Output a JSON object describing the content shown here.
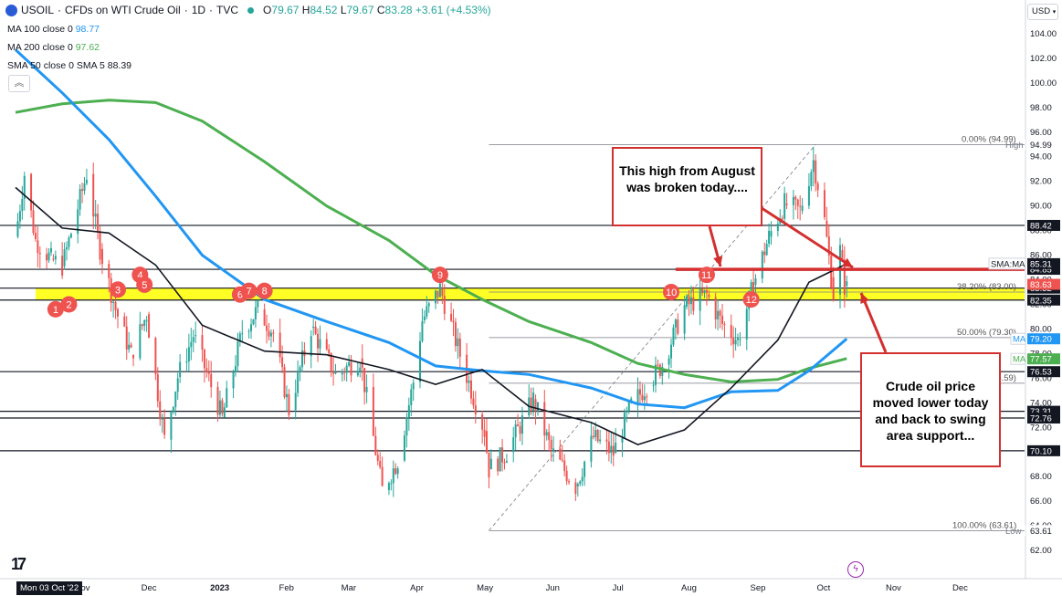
{
  "header": {
    "symbol": "USOIL",
    "title": "CFDs on WTI Crude Oil",
    "interval": "1D",
    "source": "TVC",
    "ohlc": [
      {
        "key": "O",
        "value": "79.67"
      },
      {
        "key": "H",
        "value": "84.52"
      },
      {
        "key": "L",
        "value": "79.67"
      },
      {
        "key": "C",
        "value": "83.28"
      },
      {
        "key": "",
        "value": "+3.61 (+4.53%)"
      }
    ],
    "indicators": [
      {
        "label": "MA 100 close 0",
        "value": "98.77",
        "color": "#2196f3"
      },
      {
        "label": "MA 200 close 0",
        "value": "97.62",
        "color": "#4caf50"
      },
      {
        "label": "SMA 50 close 0 SMA 5",
        "value": "88.39",
        "color": "#131722"
      }
    ],
    "collapse_symbol": "︽",
    "currency": "USD"
  },
  "colors": {
    "up": "#26a69a",
    "down": "#ef5350",
    "ma100": "#2196f3",
    "ma200": "#4caf50",
    "sma50": "#131722",
    "swing_zone": "#ffff00",
    "annotation": "#d32f2f",
    "fib": "#787b86"
  },
  "callouts": {
    "top": "This high from August was broken today....",
    "bottom": "Crude oil price moved lower today and back to swing area support..."
  },
  "bottom_bar": {
    "logo": "17",
    "date_tag": "Mon 03 Oct '22"
  },
  "chart_data": {
    "type": "candlestick",
    "y_axis_ticks": [
      62.0,
      64.0,
      66.0,
      68.0,
      70.0,
      72.0,
      74.0,
      76.0,
      78.0,
      80.0,
      82.0,
      84.0,
      86.0,
      88.0,
      90.0,
      92.0,
      94.0,
      96.0,
      98.0,
      100.0,
      102.0,
      104.0
    ],
    "ylim": [
      60,
      106
    ],
    "x_axis_ticks": [
      "Nov",
      "Dec",
      "2023",
      "Feb",
      "Mar",
      "Apr",
      "May",
      "Jun",
      "Jul",
      "Aug",
      "Sep",
      "Oct",
      "Nov",
      "Dec"
    ],
    "x_axis_tick_bold": "2023",
    "x_start": "2022-10-03",
    "x_end": "2023-12-31",
    "price_lines": [
      {
        "label": "94.99",
        "value": 94.99,
        "tag": "High",
        "style": "fib"
      },
      {
        "label": "88.42",
        "value": 88.42,
        "style": "solid"
      },
      {
        "label": "84.85",
        "value": 84.85,
        "style": "solid"
      },
      {
        "label": "83.32",
        "value": 83.32,
        "style": "solid"
      },
      {
        "label": "82.35",
        "value": 82.35,
        "style": "solid"
      },
      {
        "label": "76.53",
        "value": 76.53,
        "style": "solid"
      },
      {
        "label": "73.31",
        "value": 73.31,
        "style": "solid"
      },
      {
        "label": "72.76",
        "value": 72.76,
        "style": "solid"
      },
      {
        "label": "70.10",
        "value": 70.1,
        "style": "solid"
      },
      {
        "label": "63.61",
        "value": 63.61,
        "tag": "Low",
        "style": "fib"
      }
    ],
    "value_badges": [
      {
        "label": "SMA:MA",
        "value": "85.31",
        "y": 85.31,
        "color": "#131722"
      },
      {
        "label": "",
        "value": "83.63",
        "y": 83.63,
        "color": "#ef5350"
      },
      {
        "label": "MA",
        "value": "79.20",
        "y": 79.2,
        "color": "#2196f3"
      },
      {
        "label": "MA",
        "value": "77.57",
        "y": 77.57,
        "color": "#4caf50"
      }
    ],
    "fib_levels": [
      {
        "label": "0.00% (94.99)",
        "value": 94.99
      },
      {
        "label": "38.20% (83.00)",
        "value": 83.0
      },
      {
        "label": "50.00% (79.30)",
        "value": 79.3
      },
      {
        "label": "61.80% (75.59)",
        "value": 75.59
      },
      {
        "label": "100.00% (63.61)",
        "value": 63.61
      }
    ],
    "fib_range": {
      "start_date": "2023-05-04",
      "end_date": "2023-09-28"
    },
    "swing_zone": {
      "low": 82.35,
      "high": 83.32,
      "start_date": "2022-10-12",
      "end_date": "2023-12-31"
    },
    "red_resistance_line": {
      "value": 84.85,
      "start_date": "2023-07-27",
      "end_date": "2023-12-31"
    },
    "swing_markers": [
      {
        "label": "1",
        "date": "2022-10-21",
        "price": 81.6
      },
      {
        "label": "2",
        "date": "2022-10-27",
        "price": 82.0
      },
      {
        "label": "3",
        "date": "2022-11-18",
        "price": 83.2
      },
      {
        "label": "4",
        "date": "2022-11-28",
        "price": 84.4
      },
      {
        "label": "5",
        "date": "2022-11-30",
        "price": 83.6
      },
      {
        "label": "6",
        "date": "2023-01-12",
        "price": 82.8
      },
      {
        "label": "7",
        "date": "2023-01-16",
        "price": 83.1
      },
      {
        "label": "8",
        "date": "2023-01-23",
        "price": 83.1
      },
      {
        "label": "9",
        "date": "2023-04-12",
        "price": 84.4
      },
      {
        "label": "10",
        "date": "2023-07-25",
        "price": 83.0
      },
      {
        "label": "11",
        "date": "2023-08-10",
        "price": 84.4
      },
      {
        "label": "12",
        "date": "2023-08-30",
        "price": 82.4
      }
    ],
    "ma100_path": [
      {
        "date": "2022-10-03",
        "value": 102.7
      },
      {
        "date": "2022-10-24",
        "value": 99.2
      },
      {
        "date": "2022-11-14",
        "value": 95.4
      },
      {
        "date": "2022-12-05",
        "value": 90.8
      },
      {
        "date": "2022-12-26",
        "value": 86.0
      },
      {
        "date": "2023-01-23",
        "value": 82.4
      },
      {
        "date": "2023-02-20",
        "value": 80.6
      },
      {
        "date": "2023-03-20",
        "value": 78.9
      },
      {
        "date": "2023-04-10",
        "value": 77.0
      },
      {
        "date": "2023-05-01",
        "value": 76.6
      },
      {
        "date": "2023-05-22",
        "value": 76.3
      },
      {
        "date": "2023-06-19",
        "value": 75.2
      },
      {
        "date": "2023-07-10",
        "value": 73.9
      },
      {
        "date": "2023-07-31",
        "value": 73.6
      },
      {
        "date": "2023-08-21",
        "value": 74.9
      },
      {
        "date": "2023-09-11",
        "value": 75.0
      },
      {
        "date": "2023-09-25",
        "value": 76.6
      },
      {
        "date": "2023-10-12",
        "value": 79.2
      }
    ],
    "ma200_path": [
      {
        "date": "2022-10-03",
        "value": 97.6
      },
      {
        "date": "2022-10-24",
        "value": 98.3
      },
      {
        "date": "2022-11-14",
        "value": 98.6
      },
      {
        "date": "2022-12-05",
        "value": 98.4
      },
      {
        "date": "2022-12-26",
        "value": 96.9
      },
      {
        "date": "2023-01-23",
        "value": 93.6
      },
      {
        "date": "2023-02-20",
        "value": 90.0
      },
      {
        "date": "2023-03-20",
        "value": 87.2
      },
      {
        "date": "2023-04-10",
        "value": 84.4
      },
      {
        "date": "2023-05-01",
        "value": 82.4
      },
      {
        "date": "2023-05-22",
        "value": 80.6
      },
      {
        "date": "2023-06-19",
        "value": 78.9
      },
      {
        "date": "2023-07-10",
        "value": 77.2
      },
      {
        "date": "2023-07-31",
        "value": 76.3
      },
      {
        "date": "2023-08-21",
        "value": 75.7
      },
      {
        "date": "2023-09-11",
        "value": 75.9
      },
      {
        "date": "2023-09-25",
        "value": 76.8
      },
      {
        "date": "2023-10-12",
        "value": 77.6
      }
    ],
    "sma50_path": [
      {
        "date": "2022-10-03",
        "value": 91.5
      },
      {
        "date": "2022-10-24",
        "value": 88.2
      },
      {
        "date": "2022-11-14",
        "value": 87.8
      },
      {
        "date": "2022-12-05",
        "value": 85.2
      },
      {
        "date": "2022-12-26",
        "value": 80.3
      },
      {
        "date": "2023-01-23",
        "value": 78.2
      },
      {
        "date": "2023-02-20",
        "value": 77.9
      },
      {
        "date": "2023-03-20",
        "value": 76.7
      },
      {
        "date": "2023-04-10",
        "value": 75.5
      },
      {
        "date": "2023-05-01",
        "value": 76.7
      },
      {
        "date": "2023-05-22",
        "value": 73.7
      },
      {
        "date": "2023-06-19",
        "value": 72.4
      },
      {
        "date": "2023-07-10",
        "value": 70.6
      },
      {
        "date": "2023-07-31",
        "value": 71.8
      },
      {
        "date": "2023-08-21",
        "value": 75.2
      },
      {
        "date": "2023-09-11",
        "value": 79.1
      },
      {
        "date": "2023-09-25",
        "value": 83.8
      },
      {
        "date": "2023-10-12",
        "value": 85.3
      }
    ],
    "close_path": [
      {
        "date": "2022-10-03",
        "value": 87.5
      },
      {
        "date": "2022-10-07",
        "value": 92.6
      },
      {
        "date": "2022-10-12",
        "value": 87.2
      },
      {
        "date": "2022-10-19",
        "value": 85.7
      },
      {
        "date": "2022-10-24",
        "value": 85.1
      },
      {
        "date": "2022-11-04",
        "value": 92.6
      },
      {
        "date": "2022-11-10",
        "value": 86.5
      },
      {
        "date": "2022-11-17",
        "value": 81.6
      },
      {
        "date": "2022-11-24",
        "value": 77.9
      },
      {
        "date": "2022-12-01",
        "value": 81.2
      },
      {
        "date": "2022-12-09",
        "value": 71.0
      },
      {
        "date": "2022-12-15",
        "value": 76.1
      },
      {
        "date": "2022-12-22",
        "value": 79.5
      },
      {
        "date": "2023-01-04",
        "value": 72.8
      },
      {
        "date": "2023-01-13",
        "value": 79.8
      },
      {
        "date": "2023-01-20",
        "value": 81.6
      },
      {
        "date": "2023-01-27",
        "value": 79.7
      },
      {
        "date": "2023-02-03",
        "value": 73.4
      },
      {
        "date": "2023-02-13",
        "value": 80.1
      },
      {
        "date": "2023-02-24",
        "value": 76.3
      },
      {
        "date": "2023-03-07",
        "value": 77.6
      },
      {
        "date": "2023-03-17",
        "value": 66.9
      },
      {
        "date": "2023-03-24",
        "value": 69.3
      },
      {
        "date": "2023-03-31",
        "value": 75.7
      },
      {
        "date": "2023-04-04",
        "value": 80.7
      },
      {
        "date": "2023-04-12",
        "value": 83.3
      },
      {
        "date": "2023-04-21",
        "value": 77.9
      },
      {
        "date": "2023-05-02",
        "value": 71.7
      },
      {
        "date": "2023-05-04",
        "value": 68.6
      },
      {
        "date": "2023-05-12",
        "value": 70.0
      },
      {
        "date": "2023-05-24",
        "value": 74.3
      },
      {
        "date": "2023-06-01",
        "value": 70.1
      },
      {
        "date": "2023-06-12",
        "value": 67.2
      },
      {
        "date": "2023-06-20",
        "value": 71.2
      },
      {
        "date": "2023-06-29",
        "value": 69.9
      },
      {
        "date": "2023-07-07",
        "value": 73.8
      },
      {
        "date": "2023-07-14",
        "value": 75.4
      },
      {
        "date": "2023-07-21",
        "value": 77.1
      },
      {
        "date": "2023-07-31",
        "value": 81.8
      },
      {
        "date": "2023-08-10",
        "value": 82.8
      },
      {
        "date": "2023-08-17",
        "value": 80.4
      },
      {
        "date": "2023-08-24",
        "value": 79.1
      },
      {
        "date": "2023-08-31",
        "value": 83.6
      },
      {
        "date": "2023-09-07",
        "value": 87.5
      },
      {
        "date": "2023-09-14",
        "value": 90.2
      },
      {
        "date": "2023-09-21",
        "value": 89.6
      },
      {
        "date": "2023-09-27",
        "value": 93.7
      },
      {
        "date": "2023-10-02",
        "value": 88.8
      },
      {
        "date": "2023-10-05",
        "value": 84.2
      },
      {
        "date": "2023-10-06",
        "value": 82.8
      },
      {
        "date": "2023-10-09",
        "value": 86.4
      },
      {
        "date": "2023-10-11",
        "value": 83.5
      },
      {
        "date": "2023-10-12",
        "value": 83.3
      }
    ]
  }
}
